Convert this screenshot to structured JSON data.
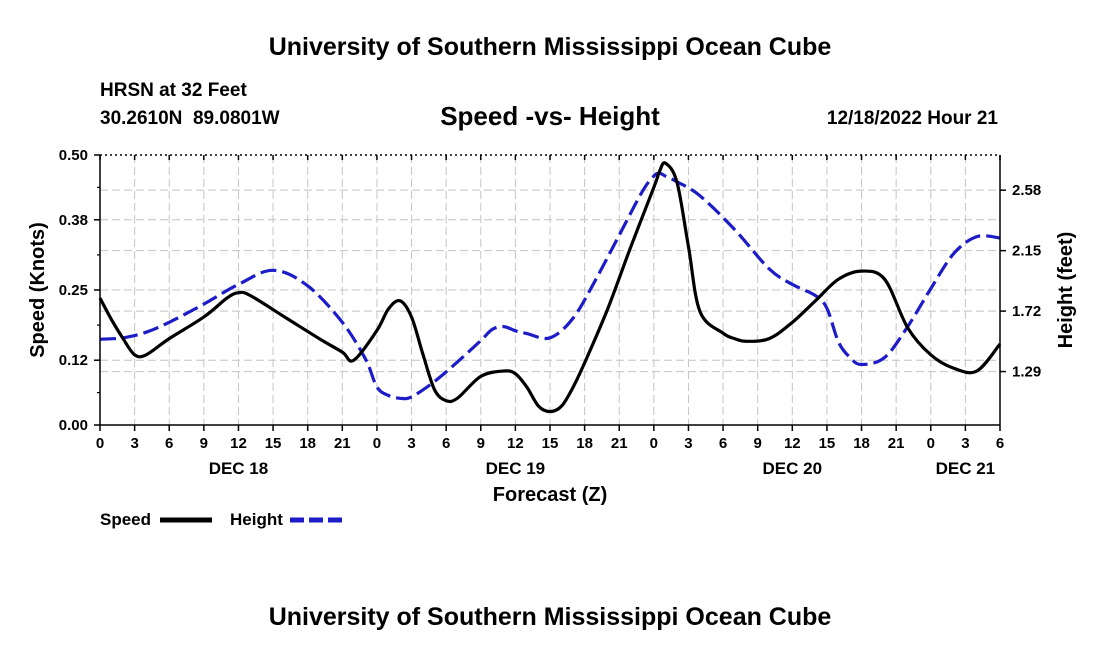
{
  "page": {
    "title": "University of Southern Mississippi Ocean Cube",
    "footer_title": "University of Southern Mississippi Ocean Cube",
    "station": "HRSN at 32 Feet",
    "coords": "30.2610N  89.0801W",
    "datetime": "12/18/2022 Hour 21"
  },
  "chart_data": {
    "type": "line",
    "title": "Speed -vs- Height",
    "xlabel": "Forecast (Z)",
    "ylabel_left": "Speed (Knots)",
    "ylabel_right": "Height (feet)",
    "x_unit": "hours since 12/18 00Z",
    "xlim": [
      0,
      78
    ],
    "ylim_left": [
      0,
      0.5
    ],
    "ylim_right": [
      0.91,
      2.83
    ],
    "y_ticks_left": [
      "0.00",
      "0.12",
      "0.25",
      "0.38",
      "0.50"
    ],
    "y_ticks_right": [
      "1.29",
      "1.72",
      "2.15",
      "2.58"
    ],
    "x_tick_labels": [
      "0",
      "3",
      "6",
      "9",
      "12",
      "15",
      "18",
      "21",
      "0",
      "3",
      "6",
      "9",
      "12",
      "15",
      "18",
      "21",
      "0",
      "3",
      "6",
      "9",
      "12",
      "15",
      "18",
      "21",
      "0",
      "3",
      "6"
    ],
    "day_labels": [
      {
        "label": "DEC 18",
        "hour": 12
      },
      {
        "label": "DEC 19",
        "hour": 36
      },
      {
        "label": "DEC 20",
        "hour": 60
      },
      {
        "label": "DEC 21",
        "hour": 75
      }
    ],
    "grid": true,
    "legend_position": "bottom-left",
    "series": [
      {
        "name": "Speed",
        "axis": "left",
        "color": "#000000",
        "style": "solid",
        "x": [
          0,
          1,
          2,
          3,
          4,
          6,
          9,
          11,
          12,
          13,
          16,
          19,
          21,
          22,
          24,
          25,
          26,
          27,
          28,
          29,
          30,
          31,
          33,
          35,
          36,
          37,
          38,
          39,
          40,
          41,
          42,
          44,
          46,
          48,
          48.5,
          49,
          50,
          51,
          52,
          54,
          55,
          56,
          58,
          60,
          62,
          64,
          66,
          68,
          70,
          72,
          74,
          76,
          78
        ],
        "y": [
          0.235,
          0.195,
          0.16,
          0.13,
          0.13,
          0.16,
          0.2,
          0.235,
          0.245,
          0.24,
          0.2,
          0.16,
          0.135,
          0.12,
          0.175,
          0.215,
          0.23,
          0.2,
          0.13,
          0.065,
          0.045,
          0.05,
          0.09,
          0.1,
          0.095,
          0.07,
          0.035,
          0.025,
          0.035,
          0.07,
          0.115,
          0.215,
          0.33,
          0.44,
          0.47,
          0.485,
          0.45,
          0.33,
          0.21,
          0.17,
          0.16,
          0.155,
          0.16,
          0.19,
          0.23,
          0.27,
          0.285,
          0.27,
          0.18,
          0.13,
          0.105,
          0.1,
          0.15
        ]
      },
      {
        "name": "Height",
        "axis": "right",
        "color": "#1c1cc8",
        "style": "dashed",
        "x": [
          0,
          2,
          4,
          6,
          9,
          12,
          15,
          18,
          21,
          23,
          24,
          25,
          26,
          27,
          29,
          31,
          33,
          34,
          35,
          36,
          37,
          39,
          41,
          43,
          45,
          47,
          48,
          48.5,
          49,
          50,
          52,
          55,
          58,
          60,
          62,
          63,
          64,
          65,
          66,
          68,
          70,
          72,
          74,
          76,
          78
        ],
        "y": [
          1.52,
          1.53,
          1.57,
          1.64,
          1.77,
          1.91,
          2.01,
          1.9,
          1.64,
          1.38,
          1.18,
          1.12,
          1.1,
          1.11,
          1.22,
          1.36,
          1.51,
          1.59,
          1.61,
          1.58,
          1.56,
          1.53,
          1.67,
          1.95,
          2.26,
          2.57,
          2.68,
          2.7,
          2.68,
          2.64,
          2.54,
          2.3,
          2.02,
          1.91,
          1.83,
          1.74,
          1.5,
          1.39,
          1.34,
          1.39,
          1.61,
          1.88,
          2.13,
          2.25,
          2.24
        ]
      }
    ]
  }
}
